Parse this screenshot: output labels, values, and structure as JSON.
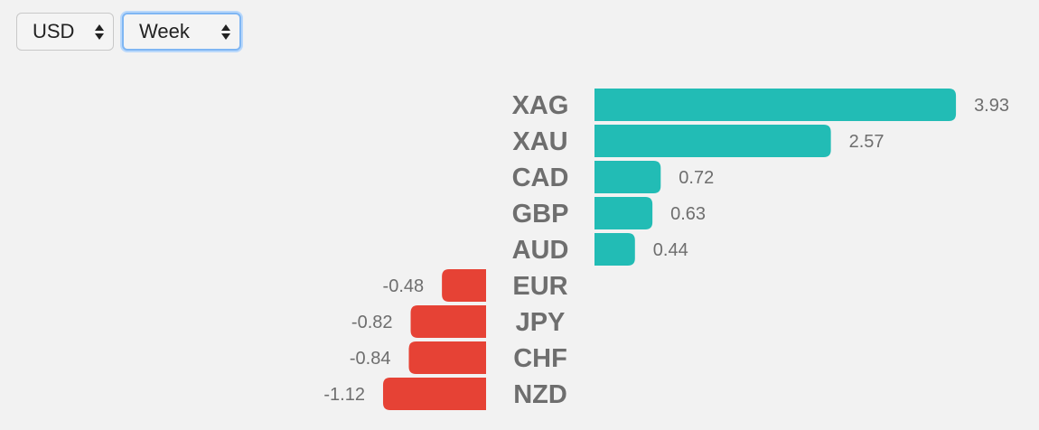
{
  "controls": {
    "currency": {
      "value": "USD",
      "icon": "updown-arrows-icon"
    },
    "period": {
      "value": "Week",
      "icon": "updown-arrows-icon"
    }
  },
  "colors": {
    "positive": "#22bcb5",
    "negative": "#e64235",
    "label": "#6e6e6e",
    "background": "#f2f2f2"
  },
  "chart_data": {
    "type": "bar",
    "orientation": "horizontal",
    "categories": [
      "XAG",
      "XAU",
      "CAD",
      "GBP",
      "AUD",
      "EUR",
      "JPY",
      "CHF",
      "NZD"
    ],
    "values": [
      3.93,
      2.57,
      0.72,
      0.63,
      0.44,
      -0.48,
      -0.82,
      -0.84,
      -1.12
    ],
    "value_labels": [
      "3.93",
      "2.57",
      "0.72",
      "0.63",
      "0.44",
      "-0.48",
      "-0.82",
      "-0.84",
      "-1.12"
    ],
    "title": "",
    "xlabel": "",
    "ylabel": "",
    "grid": false,
    "legend": "none"
  }
}
